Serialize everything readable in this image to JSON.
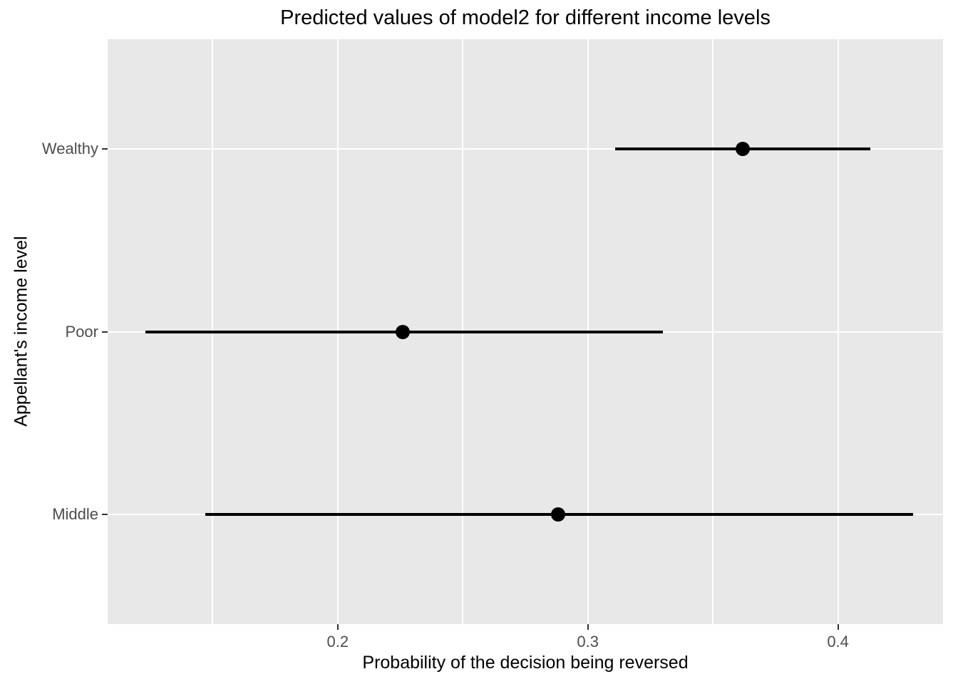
{
  "chart_data": {
    "type": "scatter",
    "subtype": "horizontal-pointrange",
    "title": "Predicted values of model2 for different income levels",
    "xlabel": "Probability of the decision being reversed",
    "ylabel": "Appellant's income level",
    "categories": [
      "Wealthy",
      "Poor",
      "Middle"
    ],
    "series": [
      {
        "name": "Wealthy",
        "estimate": 0.362,
        "ci_low": 0.311,
        "ci_high": 0.413
      },
      {
        "name": "Poor",
        "estimate": 0.226,
        "ci_low": 0.123,
        "ci_high": 0.33
      },
      {
        "name": "Middle",
        "estimate": 0.288,
        "ci_low": 0.147,
        "ci_high": 0.43
      }
    ],
    "x_ticks": [
      {
        "value": 0.2,
        "label": "0.2"
      },
      {
        "value": 0.3,
        "label": "0.3"
      },
      {
        "value": 0.4,
        "label": "0.4"
      }
    ],
    "x_minor_ticks": [
      0.15,
      0.25,
      0.35
    ],
    "xlim": [
      0.108,
      0.442
    ],
    "ylim_categories": [
      0.4,
      3.6
    ],
    "legend": "none",
    "grid": "x-major, x-minor, y-major",
    "colors": {
      "panel_bg": "#E8E8E8",
      "grid": "#FFFFFF",
      "marks": "#000000",
      "axis_text": "#4D4D4D",
      "axis_title": "#000000",
      "title": "#000000",
      "ticks": "#333333"
    }
  }
}
